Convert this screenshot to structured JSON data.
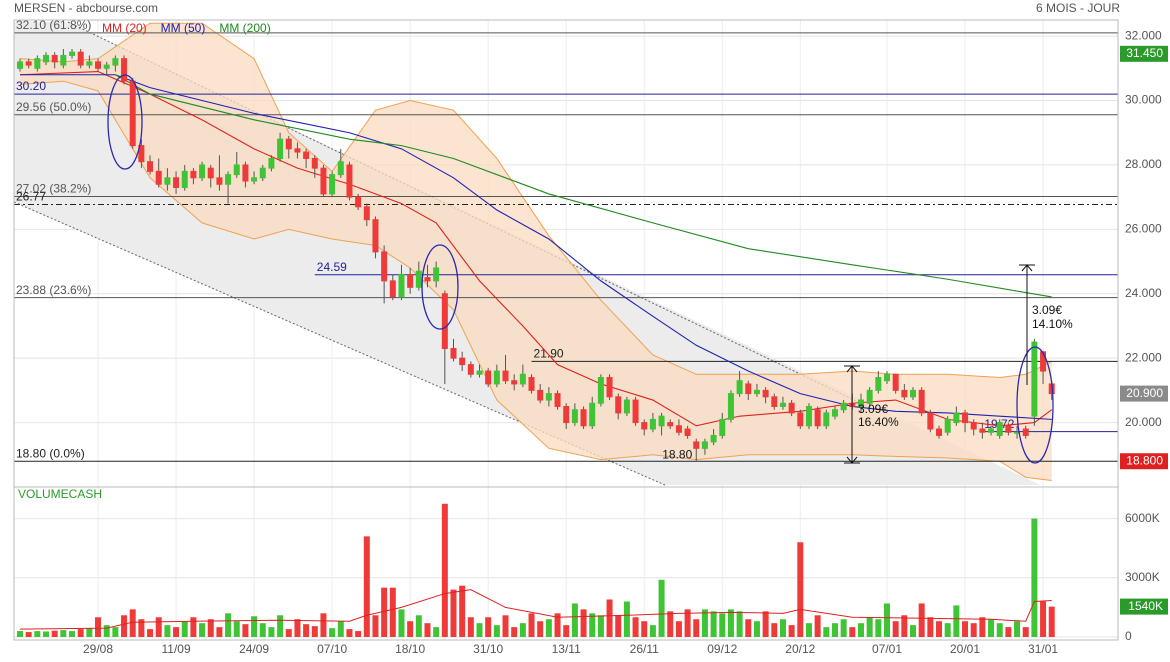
{
  "chart_data": {
    "type": "candlestick",
    "title": "MERSEN - abcbourse.com",
    "subtitle": "6 MOIS - JOUR",
    "categories": [
      null,
      null,
      null,
      null,
      null,
      null,
      null,
      null,
      null,
      "29/08",
      null,
      null,
      null,
      null,
      null,
      null,
      null,
      null,
      "11/09",
      null,
      null,
      null,
      null,
      null,
      null,
      null,
      null,
      "24/09",
      null,
      null,
      null,
      null,
      null,
      null,
      null,
      null,
      "07/10",
      null,
      null,
      null,
      null,
      null,
      null,
      null,
      null,
      "18/10",
      null,
      null,
      null,
      null,
      null,
      null,
      null,
      null,
      "31/10",
      null,
      null,
      null,
      null,
      null,
      null,
      null,
      null,
      "13/11",
      null,
      null,
      null,
      null,
      null,
      null,
      null,
      null,
      "26/11",
      null,
      null,
      null,
      null,
      null,
      null,
      null,
      null,
      "09/12",
      null,
      null,
      null,
      null,
      null,
      null,
      null,
      null,
      "20/12",
      null,
      null,
      null,
      null,
      null,
      null,
      null,
      null,
      null,
      "07/01",
      null,
      null,
      null,
      null,
      null,
      null,
      null,
      null,
      "20/01",
      null,
      null,
      null,
      null,
      null,
      null,
      null,
      null,
      "31/01",
      null
    ],
    "open": [
      31.0,
      31.2,
      31.0,
      31.2,
      31.4,
      31.1,
      31.4,
      31.5,
      31.1,
      31.2,
      31.0,
      31.1,
      31.3,
      30.6,
      28.6,
      28.1,
      27.8,
      27.4,
      27.6,
      27.3,
      27.8,
      27.6,
      27.9,
      27.6,
      27.4,
      27.7,
      28.0,
      27.5,
      27.6,
      27.9,
      28.2,
      28.8,
      28.5,
      28.4,
      28.2,
      27.9,
      27.1,
      27.7,
      28.0,
      27.0,
      26.7,
      26.3,
      25.3,
      24.4,
      23.9,
      24.6,
      24.2,
      24.5,
      24.4,
      24.0,
      22.3,
      22.0,
      21.8,
      21.5,
      21.6,
      21.2,
      21.6,
      21.3,
      21.2,
      21.4,
      21.0,
      20.7,
      20.9,
      20.5,
      20.0,
      20.4,
      19.9,
      20.6,
      21.4,
      20.8,
      20.3,
      20.7,
      20.0,
      19.8,
      19.9,
      20.0,
      19.9,
      19.8,
      19.4,
      19.2,
      19.4,
      19.6,
      20.1,
      20.9,
      21.2,
      20.9,
      21.0,
      20.8,
      20.5,
      20.6,
      20.3,
      19.9,
      20.4,
      19.9,
      20.2,
      20.4,
      20.6,
      20.5,
      20.6,
      21.0,
      21.3,
      21.5,
      21.0,
      20.8,
      21.0,
      20.3,
      19.8,
      19.7,
      20.0,
      20.3,
      20.0,
      19.8,
      19.7,
      19.6,
      19.9,
      19.7,
      19.8,
      20.2,
      22.2,
      21.2
    ],
    "high": [
      31.3,
      31.3,
      31.4,
      31.5,
      31.5,
      31.6,
      31.6,
      31.6,
      31.4,
      31.3,
      31.2,
      31.4,
      31.4,
      30.7,
      28.8,
      28.3,
      28.2,
      27.9,
      27.8,
      28.0,
      27.9,
      28.1,
      28.0,
      28.3,
      27.8,
      28.4,
      28.1,
      27.8,
      28.0,
      28.3,
      29.0,
      28.9,
      28.7,
      28.5,
      28.3,
      28.0,
      27.8,
      28.5,
      28.1,
      27.1,
      26.8,
      26.4,
      25.5,
      24.6,
      24.9,
      24.8,
      25.0,
      24.9,
      25.0,
      24.1,
      22.6,
      22.2,
      21.9,
      21.8,
      21.7,
      21.8,
      22.1,
      21.5,
      21.8,
      21.5,
      21.2,
      21.1,
      21.0,
      20.6,
      20.6,
      20.5,
      20.8,
      21.5,
      21.5,
      20.9,
      20.8,
      20.8,
      20.1,
      20.3,
      20.3,
      20.1,
      20.1,
      19.9,
      19.5,
      19.5,
      19.8,
      20.3,
      21.0,
      21.6,
      21.3,
      21.2,
      21.1,
      20.9,
      20.8,
      20.7,
      20.4,
      20.6,
      20.5,
      20.4,
      20.5,
      20.7,
      20.9,
      20.9,
      21.1,
      21.6,
      21.6,
      21.5,
      21.2,
      21.1,
      21.1,
      20.4,
      19.9,
      20.2,
      20.5,
      20.4,
      20.1,
      20.0,
      19.9,
      20.1,
      20.0,
      19.9,
      19.9,
      22.6,
      22.2,
      21.3
    ],
    "low": [
      30.9,
      31.0,
      30.9,
      31.1,
      31.0,
      31.0,
      31.3,
      31.0,
      31.0,
      30.9,
      30.8,
      30.9,
      30.5,
      28.5,
      27.9,
      27.7,
      27.3,
      27.2,
      27.1,
      27.2,
      27.4,
      27.5,
      27.3,
      27.2,
      26.8,
      27.6,
      27.3,
      27.4,
      27.5,
      27.8,
      28.1,
      28.2,
      28.2,
      27.9,
      27.6,
      27.0,
      27.0,
      27.6,
      26.9,
      26.6,
      26.1,
      25.1,
      23.7,
      23.8,
      23.8,
      24.0,
      24.1,
      24.2,
      24.2,
      21.2,
      21.9,
      21.6,
      21.4,
      21.4,
      21.1,
      21.1,
      21.2,
      21.0,
      21.1,
      20.9,
      20.6,
      20.5,
      20.4,
      19.8,
      19.9,
      19.8,
      19.8,
      20.5,
      20.7,
      20.1,
      20.2,
      19.9,
      19.6,
      19.7,
      19.6,
      19.8,
      19.6,
      19.5,
      18.8,
      19.0,
      19.3,
      19.5,
      20.0,
      20.8,
      20.7,
      20.8,
      20.6,
      20.4,
      20.4,
      20.2,
      19.8,
      19.8,
      19.8,
      19.8,
      20.1,
      20.3,
      20.4,
      20.3,
      20.5,
      20.9,
      21.2,
      20.9,
      20.7,
      20.7,
      20.2,
      19.7,
      19.5,
      19.6,
      19.9,
      19.7,
      19.6,
      19.5,
      19.6,
      19.5,
      19.6,
      19.5,
      19.5,
      19.9,
      21.2,
      20.7
    ],
    "close": [
      31.2,
      31.1,
      31.3,
      31.4,
      31.2,
      31.4,
      31.5,
      31.1,
      31.2,
      31.0,
      31.1,
      31.3,
      30.6,
      28.6,
      28.1,
      27.8,
      27.4,
      27.6,
      27.3,
      27.8,
      27.6,
      28.0,
      27.6,
      27.4,
      27.7,
      28.0,
      27.5,
      27.6,
      27.9,
      28.2,
      28.8,
      28.5,
      28.4,
      28.2,
      27.9,
      27.1,
      27.7,
      28.1,
      27.0,
      26.7,
      26.3,
      25.3,
      24.4,
      23.9,
      24.6,
      24.2,
      24.7,
      24.4,
      24.8,
      22.3,
      22.0,
      21.8,
      21.5,
      21.6,
      21.2,
      21.6,
      21.3,
      21.2,
      21.5,
      21.0,
      20.7,
      20.9,
      20.5,
      20.0,
      20.4,
      19.9,
      20.6,
      21.4,
      20.8,
      20.3,
      20.7,
      20.0,
      19.8,
      20.1,
      20.2,
      19.9,
      19.7,
      19.6,
      19.2,
      19.4,
      19.6,
      20.1,
      20.9,
      21.3,
      20.9,
      21.0,
      20.8,
      20.5,
      20.6,
      20.3,
      19.9,
      20.5,
      19.9,
      20.3,
      20.4,
      20.6,
      20.5,
      20.7,
      21.0,
      21.4,
      21.5,
      21.0,
      20.8,
      21.0,
      20.3,
      19.8,
      19.6,
      20.1,
      20.3,
      20.0,
      19.8,
      19.7,
      19.8,
      20.0,
      19.7,
      19.7,
      19.6,
      22.5,
      21.6,
      20.9
    ],
    "up_color": "#3fc436",
    "down_color": "#ef3a3a",
    "ylim": [
      18.0,
      32.5
    ],
    "yticks": [
      {
        "value": 32,
        "label": "32.000"
      },
      {
        "value": 30,
        "label": "30.000"
      },
      {
        "value": 28,
        "label": "28.000"
      },
      {
        "value": 26,
        "label": "26.000"
      },
      {
        "value": 24,
        "label": "24.000"
      },
      {
        "value": 22,
        "label": "22.000"
      },
      {
        "value": 20,
        "label": "20.000"
      }
    ],
    "grid": true,
    "band": {
      "color": "#f0a050",
      "x": [
        0,
        5,
        9,
        15,
        21,
        27,
        31,
        36,
        41,
        45,
        50,
        55,
        61,
        67,
        73,
        78,
        84,
        90,
        96,
        101,
        107,
        113,
        116,
        119
      ],
      "upper": [
        31.3,
        31.2,
        31.3,
        32.4,
        32.4,
        31.3,
        29.0,
        27.8,
        29.7,
        30.0,
        29.7,
        28.2,
        25.8,
        23.8,
        22.1,
        21.5,
        21.5,
        21.5,
        21.6,
        21.5,
        21.5,
        21.4,
        21.5,
        21.9
      ],
      "lower": [
        30.5,
        30.6,
        30.3,
        27.6,
        26.2,
        25.7,
        26.0,
        25.7,
        25.5,
        24.8,
        23.5,
        20.7,
        19.2,
        18.85,
        19.0,
        18.85,
        19.0,
        19.0,
        19.0,
        18.95,
        18.9,
        18.8,
        18.3,
        18.2
      ]
    },
    "series": [
      {
        "name": "MM (20)",
        "color": "#e02020",
        "x": [
          0,
          9,
          15,
          21,
          27,
          32,
          38,
          44,
          48,
          53,
          58,
          62,
          67,
          73,
          78,
          83,
          90,
          96,
          101,
          107,
          113,
          117,
          119
        ],
        "values": [
          30.8,
          30.9,
          30.2,
          29.4,
          28.5,
          27.9,
          27.4,
          26.8,
          26.2,
          24.4,
          23.0,
          21.8,
          21.2,
          20.7,
          19.9,
          20.2,
          20.35,
          20.6,
          20.7,
          20.1,
          19.9,
          20.0,
          20.4
        ]
      },
      {
        "name": "MM (50)",
        "color": "#2020b0",
        "x": [
          0,
          11,
          15,
          27,
          38,
          44,
          50,
          55,
          61,
          67,
          73,
          78,
          84,
          90,
          96,
          101,
          107,
          113,
          119
        ],
        "values": [
          30.8,
          30.8,
          30.4,
          29.6,
          29.0,
          28.5,
          27.6,
          26.6,
          25.7,
          24.4,
          23.3,
          22.4,
          21.6,
          20.9,
          20.5,
          20.35,
          20.3,
          20.2,
          20.1
        ]
      },
      {
        "name": "MM (200)",
        "color": "#1f8a1f",
        "x": [
          11,
          15,
          27,
          38,
          44,
          50,
          61,
          73,
          84,
          96,
          107,
          119
        ],
        "values": [
          30.8,
          30.2,
          29.4,
          28.8,
          28.6,
          28.2,
          27.1,
          26.2,
          25.4,
          24.9,
          24.45,
          23.9
        ]
      }
    ],
    "levels": [
      {
        "value": 32.1,
        "label": "32.10 (61.8%)",
        "color": "#555555"
      },
      {
        "value": 30.2,
        "label": "30.20",
        "color": "#22229a"
      },
      {
        "value": 29.56,
        "label": "29.56 (50.0%)",
        "color": "#555555"
      },
      {
        "value": 27.02,
        "label": "27.02 (38.2%)",
        "color": "#555555"
      },
      {
        "value": 26.77,
        "label": "26.77",
        "color": "#222222",
        "style": "dashdot"
      },
      {
        "value": 24.59,
        "label": "24.59",
        "color": "#22229a",
        "from": 34
      },
      {
        "value": 23.88,
        "label": "23.88 (23.6%)",
        "color": "#555555"
      },
      {
        "value": 21.9,
        "label": "21.90",
        "color": "#222222",
        "from": 59
      },
      {
        "value": 19.72,
        "label": "19.72",
        "color": "#22229a",
        "from": 111
      },
      {
        "value": 18.8,
        "label": "18.80 (0.0%)",
        "color": "#222222"
      }
    ],
    "point_labels": [
      {
        "x": 78,
        "value": 18.8,
        "label": "18.80"
      }
    ],
    "measures": [
      [
        "3.09€",
        "16.40%"
      ],
      [
        "3.09€",
        "14.10%"
      ]
    ],
    "last_labels": [
      {
        "value": 31.45,
        "label": "31.450",
        "color": "#2a9a2a"
      },
      {
        "value": 20.9,
        "label": "20.900",
        "color": "#8a8a8a"
      },
      {
        "value": 18.8,
        "label": "18.800",
        "color": "#e02020"
      }
    ],
    "volume": {
      "title": "VOLUMECASH",
      "values": [
        300000,
        250000,
        300000,
        280000,
        320000,
        350000,
        300000,
        400000,
        450000,
        1000000,
        600000,
        500000,
        1100000,
        1400000,
        900000,
        400000,
        1000000,
        600000,
        500000,
        800000,
        1000000,
        700000,
        900000,
        500000,
        1200000,
        800000,
        650000,
        1050000,
        700000,
        500000,
        1100000,
        400000,
        900000,
        650000,
        550000,
        1200000,
        450000,
        800000,
        400000,
        300000,
        5100000,
        1100000,
        2500000,
        2500000,
        1400000,
        800000,
        1100000,
        700000,
        500000,
        6750000,
        2400000,
        2600000,
        1000000,
        700000,
        1000000,
        600000,
        1100000,
        500000,
        700000,
        1200000,
        800000,
        900000,
        1200000,
        600000,
        1700000,
        1400000,
        1200000,
        1100000,
        1900000,
        1100000,
        1800000,
        1000000,
        800000,
        600000,
        2900000,
        1300000,
        800000,
        1400000,
        900000,
        1400000,
        1300000,
        1200000,
        1400000,
        1300000,
        900000,
        800000,
        1300000,
        700000,
        900000,
        600000,
        4800000,
        700000,
        1100000,
        500000,
        700000,
        900000,
        500000,
        700000,
        1000000,
        900000,
        1700000,
        800000,
        1100000,
        600000,
        1700000,
        1000000,
        800000,
        700000,
        1600000,
        800000,
        700000,
        1000000,
        900000,
        700000,
        500000,
        800000,
        500000,
        6000000,
        1800000,
        1540000
      ],
      "ylim": [
        0,
        7600000
      ],
      "yticks": [
        0,
        {
          "value": 3000000,
          "label": "3000K"
        },
        {
          "value": 6000000,
          "label": "6000K"
        }
      ],
      "ma": {
        "color": "#e02020",
        "x": [
          0,
          10,
          13,
          20,
          30,
          38,
          40,
          44,
          49,
          52,
          56,
          62,
          70,
          76,
          82,
          88,
          90,
          96,
          104,
          112,
          116,
          117,
          119
        ],
        "values": [
          400000,
          450000,
          750000,
          800000,
          850000,
          800000,
          1100000,
          1500000,
          2200000,
          2400000,
          1500000,
          1000000,
          1100000,
          1200000,
          1250000,
          1200000,
          1400000,
          1000000,
          950000,
          900000,
          800000,
          1800000,
          1850000
        ]
      },
      "last": {
        "value": 1540000,
        "label": "1540K",
        "color": "#2a9a2a"
      }
    }
  }
}
